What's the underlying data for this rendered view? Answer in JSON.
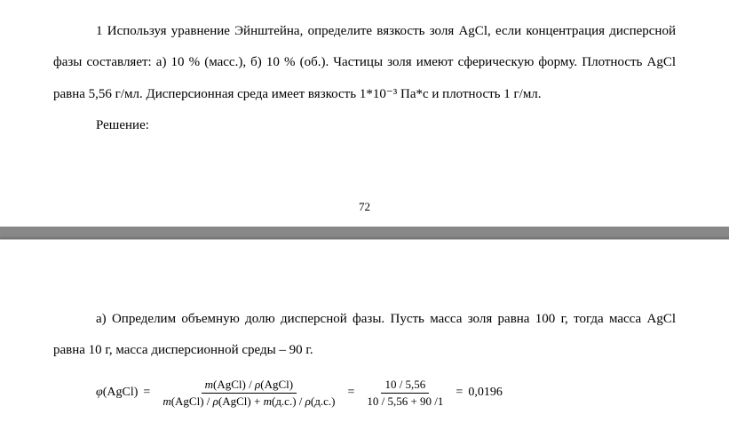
{
  "page_top": {
    "paragraph1": "1 Используя уравнение Эйнштейна, определите вязкость золя AgCl, если концентрация дисперсной фазы составляет: а) 10 % (масс.), б) 10 % (об.). Частицы золя имеют сферическую форму. Плотность AgCl равна 5,56 г/мл. Дисперсионная среда имеет вязкость 1*10⁻³ Па*с и плотность 1 г/мл.",
    "solution_label": "Решение:",
    "page_number": "72"
  },
  "page_bottom": {
    "paragraph2": "а) Определим объемную долю дисперсной фазы. Пусть масса золя равна 100 г, тогда масса AgCl равна 10 г, масса дисперсионной среды – 90 г.",
    "formula": {
      "lhs_phi": "φ",
      "lhs_arg": "(AgCl)",
      "frac1_num_m": "m",
      "frac1_num_arg1": "(AgCl) / ",
      "frac1_num_rho1": "ρ",
      "frac1_num_arg2": "(AgCl)",
      "frac1_den_m1": "m",
      "frac1_den_arg1": "(AgCl) / ",
      "frac1_den_rho1": "ρ",
      "frac1_den_arg2": "(AgCl) + ",
      "frac1_den_m2": "m",
      "frac1_den_arg3": "(д.с.) / ",
      "frac1_den_rho2": "ρ",
      "frac1_den_arg4": "(д.с.)",
      "frac2_num": "10 / 5,56",
      "frac2_den": "10 / 5,56 + 90 /1",
      "result": "0,0196",
      "eq": "="
    }
  },
  "colors": {
    "page_bg": "#ffffff",
    "gap_bg": "#888888",
    "text": "#000000"
  }
}
